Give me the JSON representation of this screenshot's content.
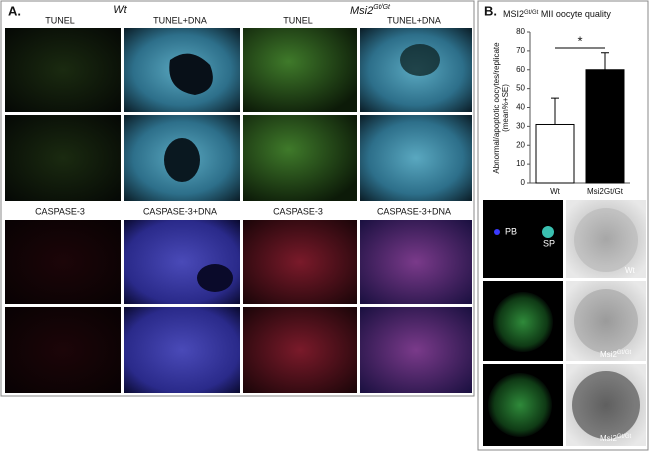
{
  "panel_a": {
    "label": "A.",
    "group_left": "Wt",
    "group_right": {
      "base": "Msi2",
      "sup": "Gt/Gt"
    },
    "row_labels_top": [
      "TUNEL",
      "TUNEL+DNA",
      "TUNEL",
      "TUNEL+DNA"
    ],
    "row_labels_bottom": [
      "CASPASE-3",
      "CASPASE-3+DNA",
      "CASPASE-3",
      "CASPASE-3+DNA"
    ]
  },
  "panel_b": {
    "label": "B.",
    "images": {
      "pb": "PB",
      "sp": "SP",
      "row1": "Wt",
      "row2": {
        "base": "Msi2",
        "sup": "Gt/Gt"
      },
      "row3": {
        "base": "Msi2",
        "sup": "Gt/Gt"
      }
    }
  },
  "chart_data": {
    "type": "bar",
    "title": {
      "base": "MSI2",
      "sup": "Gt/Gt",
      "rest": " MII oocyte quality"
    },
    "y_label": [
      "Abnormal/apoptotic oocytes/replicate",
      "(mean%+SE)"
    ],
    "categories": [
      "Wt",
      "Msi2Gt/Gt"
    ],
    "values": [
      31,
      60
    ],
    "errors": [
      14,
      9
    ],
    "colors": [
      "#ffffff",
      "#000000"
    ],
    "ylim": [
      0,
      80
    ],
    "yticks": [
      0,
      10,
      20,
      30,
      40,
      50,
      60,
      70,
      80
    ],
    "significance": "*"
  }
}
